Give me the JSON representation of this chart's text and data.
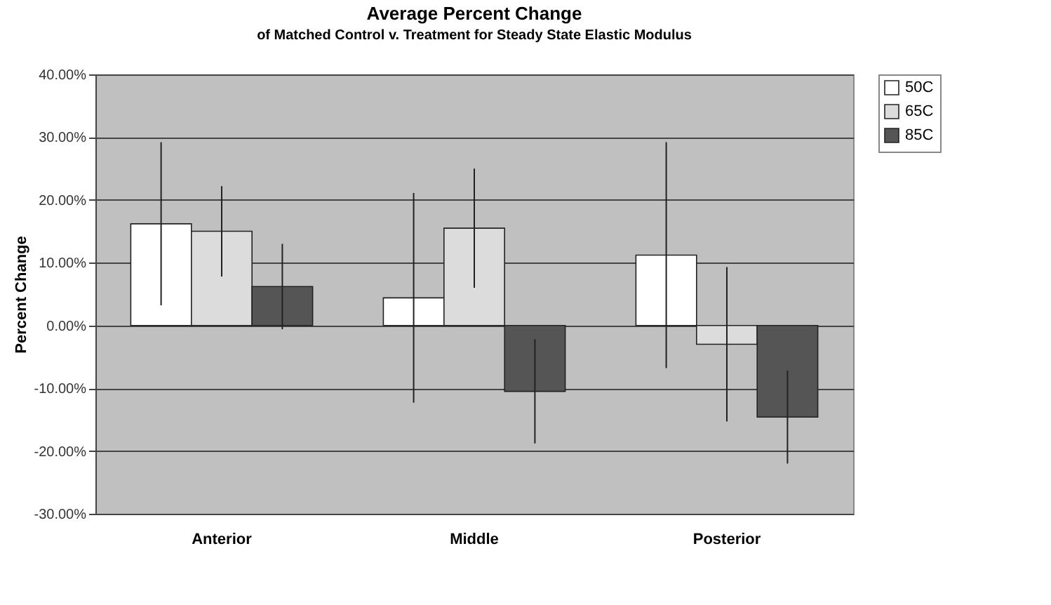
{
  "chart_data": {
    "type": "bar",
    "title": "Average Percent Change",
    "subtitle": "of Matched Control v. Treatment for Steady State Elastic Modulus",
    "ylabel": "Percent Change",
    "categories": [
      "Anterior",
      "Middle",
      "Posterior"
    ],
    "series": [
      {
        "name": "50C",
        "color": "#ffffff",
        "values": [
          16.2,
          4.4,
          11.2
        ],
        "errors": [
          13,
          16.7,
          18
        ]
      },
      {
        "name": "65C",
        "color": "#dcdcdc",
        "values": [
          15,
          15.5,
          -3
        ],
        "errors": [
          7.2,
          9.5,
          12.3
        ]
      },
      {
        "name": "85C",
        "color": "#555555",
        "values": [
          6.2,
          -10.5,
          -14.6
        ],
        "errors": [
          6.8,
          8.3,
          7.4
        ]
      }
    ],
    "ylim": [
      -30,
      40
    ],
    "yticks": [
      {
        "value": -30,
        "label": "-30.00%"
      },
      {
        "value": -20,
        "label": "-20.00%"
      },
      {
        "value": -10,
        "label": "-10.00%"
      },
      {
        "value": 0,
        "label": "0.00%"
      },
      {
        "value": 10,
        "label": "10.00%"
      },
      {
        "value": 20,
        "label": "20.00%"
      },
      {
        "value": 30,
        "label": "30.00%"
      },
      {
        "value": 40,
        "label": "40.00%"
      }
    ],
    "grid": "y",
    "legend": "right"
  }
}
